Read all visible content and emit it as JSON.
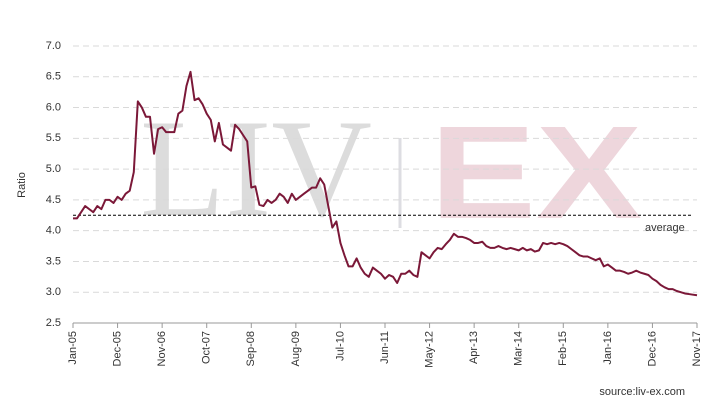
{
  "chart_data": {
    "type": "line",
    "y_label": "Ratio",
    "source": "source:liv-ex.com",
    "watermark": {
      "left": "LIV",
      "right": "EX"
    },
    "average": 4.25,
    "average_label": "average",
    "categories": [
      "Jan-05",
      null,
      null,
      null,
      null,
      null,
      null,
      null,
      null,
      null,
      null,
      "Dec-05",
      null,
      null,
      null,
      null,
      null,
      null,
      null,
      null,
      null,
      null,
      "Nov-06",
      null,
      null,
      null,
      null,
      null,
      null,
      null,
      null,
      null,
      null,
      "Oct-07",
      null,
      null,
      null,
      null,
      null,
      null,
      null,
      null,
      null,
      null,
      "Sep-08",
      null,
      null,
      null,
      null,
      null,
      null,
      null,
      null,
      null,
      null,
      "Aug-09",
      null,
      null,
      null,
      null,
      null,
      null,
      null,
      null,
      null,
      null,
      "Jul-10",
      null,
      null,
      null,
      null,
      null,
      null,
      null,
      null,
      null,
      null,
      "Jun-11",
      null,
      null,
      null,
      null,
      null,
      null,
      null,
      null,
      null,
      null,
      "May-12",
      null,
      null,
      null,
      null,
      null,
      null,
      null,
      null,
      null,
      null,
      "Apr-13",
      null,
      null,
      null,
      null,
      null,
      null,
      null,
      null,
      null,
      null,
      "Mar-14",
      null,
      null,
      null,
      null,
      null,
      null,
      null,
      null,
      null,
      null,
      "Feb-15",
      null,
      null,
      null,
      null,
      null,
      null,
      null,
      null,
      null,
      null,
      "Jan-16",
      null,
      null,
      null,
      null,
      null,
      null,
      null,
      null,
      null,
      null,
      "Dec-16",
      null,
      null,
      null,
      null,
      null,
      null,
      null,
      null,
      null,
      null,
      "Nov-17"
    ],
    "series": [
      {
        "color": "#7b1838",
        "values": [
          4.2,
          4.2,
          4.3,
          4.4,
          4.35,
          4.3,
          4.4,
          4.35,
          4.5,
          4.5,
          4.45,
          4.55,
          4.5,
          4.6,
          4.65,
          4.95,
          6.1,
          6.0,
          5.85,
          5.85,
          5.25,
          5.65,
          5.68,
          5.6,
          5.6,
          5.6,
          5.9,
          5.95,
          6.35,
          6.58,
          6.12,
          6.15,
          6.05,
          5.9,
          5.8,
          5.45,
          5.75,
          5.4,
          5.35,
          5.3,
          5.72,
          5.65,
          5.55,
          5.45,
          4.7,
          4.72,
          4.42,
          4.4,
          4.5,
          4.45,
          4.5,
          4.6,
          4.55,
          4.45,
          4.6,
          4.5,
          4.55,
          4.6,
          4.65,
          4.7,
          4.7,
          4.85,
          4.75,
          4.4,
          4.05,
          4.15,
          3.8,
          3.6,
          3.42,
          3.42,
          3.55,
          3.4,
          3.3,
          3.25,
          3.4,
          3.35,
          3.3,
          3.22,
          3.28,
          3.25,
          3.15,
          3.3,
          3.3,
          3.35,
          3.28,
          3.25,
          3.65,
          3.6,
          3.55,
          3.65,
          3.72,
          3.7,
          3.78,
          3.85,
          3.95,
          3.9,
          3.9,
          3.88,
          3.85,
          3.8,
          3.8,
          3.82,
          3.75,
          3.72,
          3.72,
          3.75,
          3.72,
          3.7,
          3.72,
          3.7,
          3.68,
          3.72,
          3.68,
          3.7,
          3.66,
          3.68,
          3.8,
          3.78,
          3.8,
          3.78,
          3.8,
          3.78,
          3.75,
          3.7,
          3.65,
          3.6,
          3.58,
          3.58,
          3.55,
          3.52,
          3.55,
          3.42,
          3.45,
          3.4,
          3.35,
          3.35,
          3.33,
          3.3,
          3.32,
          3.35,
          3.32,
          3.3,
          3.28,
          3.22,
          3.18,
          3.12,
          3.08,
          3.05,
          3.05,
          3.02,
          3.0,
          2.98,
          2.97,
          2.96,
          2.95
        ]
      }
    ],
    "ylim": [
      2.5,
      7.0
    ],
    "yticks": [
      2.5,
      {
        "value": 3.0,
        "label": "3.0"
      },
      3.5,
      {
        "value": 4.0,
        "label": "4.0"
      },
      4.5,
      {
        "value": 5.0,
        "label": "5.0"
      },
      5.5,
      {
        "value": 6.0,
        "label": "6.0"
      },
      6.5,
      {
        "value": 7.0,
        "label": "7.0"
      }
    ],
    "grid": true
  }
}
